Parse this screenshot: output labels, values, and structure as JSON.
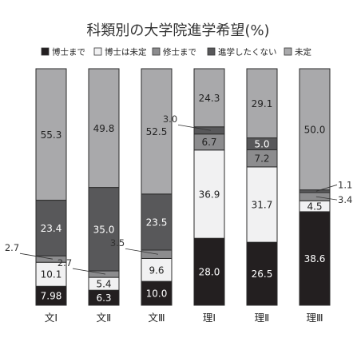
{
  "chart_data": {
    "type": "bar",
    "stacked": true,
    "normalized_percent": true,
    "title": "科類別の大学院進学希望(%)",
    "legend_placement": "top",
    "categories": [
      "文Ⅰ",
      "文Ⅱ",
      "文Ⅲ",
      "理Ⅰ",
      "理Ⅱ",
      "理Ⅲ"
    ],
    "series": [
      {
        "name": "博士まで",
        "color": "#231f20",
        "text_color": "#ffffff",
        "values": [
          7.98,
          6.3,
          10.0,
          28.0,
          26.5,
          38.6
        ],
        "labels": [
          "7.98",
          "6.3",
          "10.0",
          "28.0",
          "26.5",
          "38.6"
        ]
      },
      {
        "name": "博士は未定",
        "color": "#f1f1f2",
        "text_color": "#222222",
        "values": [
          10.1,
          5.4,
          9.6,
          36.9,
          31.7,
          4.5
        ],
        "labels": [
          "10.1",
          "5.4",
          "9.6",
          "36.9",
          "31.7",
          "4.5"
        ]
      },
      {
        "name": "修士まで",
        "color": "#8c8c8e",
        "text_color": "#222222",
        "values": [
          2.7,
          2.7,
          3.5,
          6.7,
          7.2,
          3.4
        ],
        "labels": [
          "2.7",
          "2.7",
          "3.5",
          "6.7",
          "7.2",
          "3.4"
        ]
      },
      {
        "name": "進学したくない",
        "color": "#58585a",
        "text_color": "#ffffff",
        "values": [
          23.4,
          35.0,
          23.5,
          3.0,
          5.0,
          1.1
        ],
        "labels": [
          "23.4",
          "35.0",
          "23.5",
          "3.0",
          "5.0",
          "1.1"
        ]
      },
      {
        "name": "未定",
        "color": "#a9a9ab",
        "text_color": "#222222",
        "values": [
          55.3,
          49.8,
          52.5,
          24.3,
          29.1,
          50.0
        ],
        "labels": [
          "55.3",
          "49.8",
          "52.5",
          "24.3",
          "29.1",
          "50.0"
        ]
      }
    ],
    "outside_labels": [
      {
        "category": 0,
        "series": 2,
        "side": "left"
      },
      {
        "category": 1,
        "series": 2,
        "side": "left"
      },
      {
        "category": 2,
        "series": 2,
        "side": "left"
      },
      {
        "category": 3,
        "series": 3,
        "side": "left"
      },
      {
        "category": 5,
        "series": 3,
        "side": "right"
      },
      {
        "category": 5,
        "series": 2,
        "side": "right"
      }
    ],
    "ylim": [
      0,
      100
    ],
    "grid": false
  }
}
